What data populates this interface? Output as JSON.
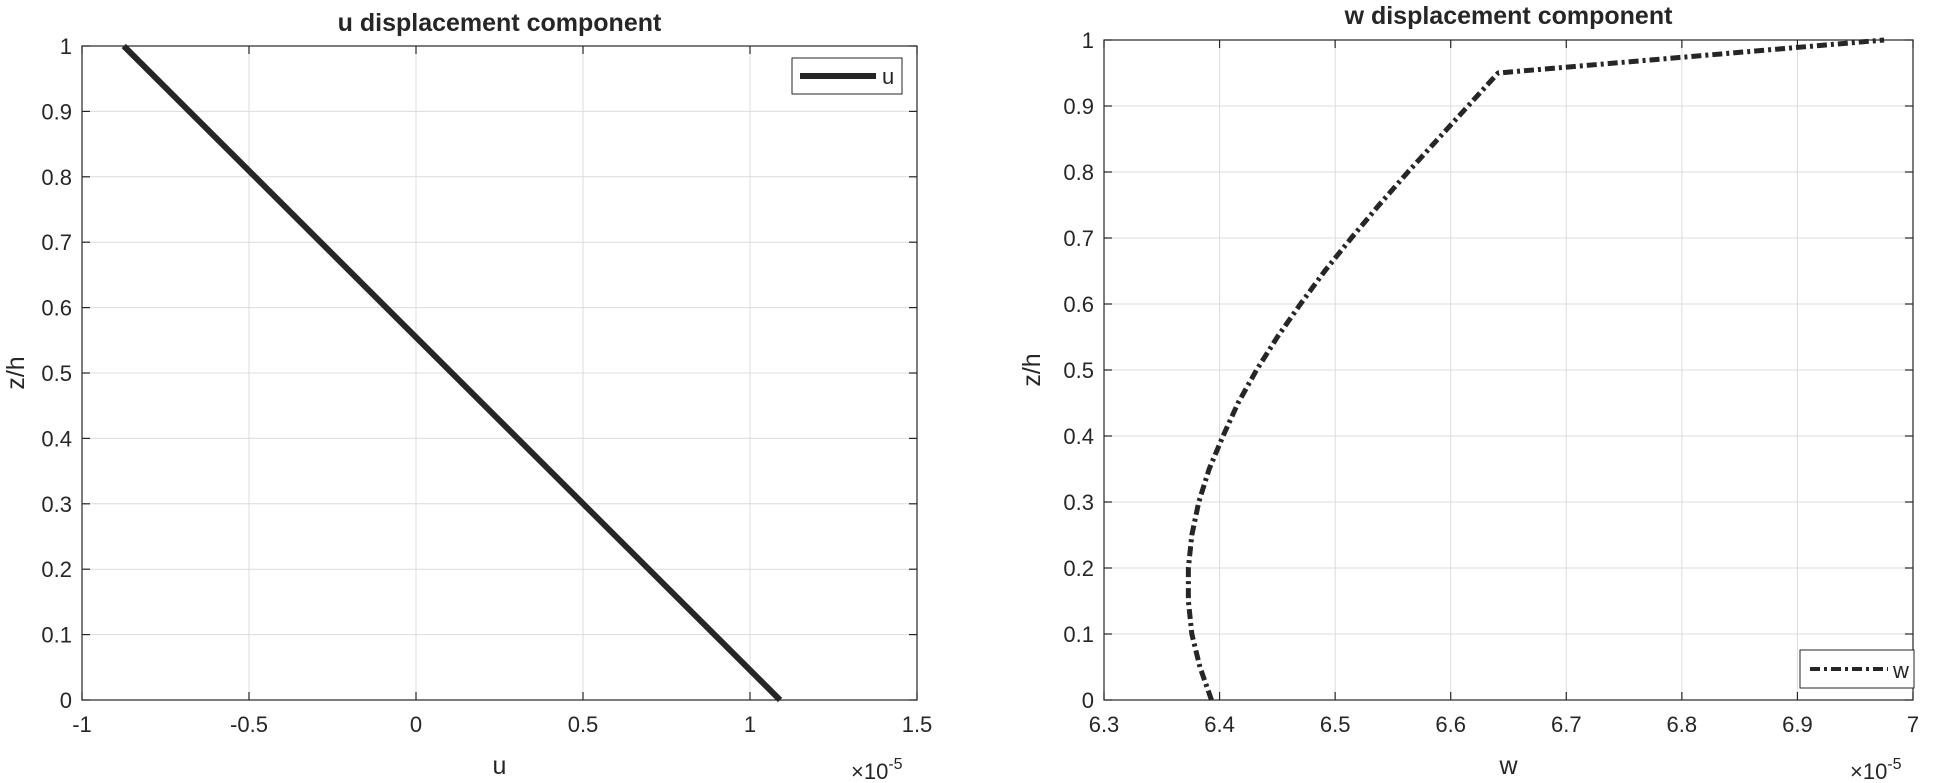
{
  "chart_data": [
    {
      "type": "line",
      "title": "u displacement component",
      "xlabel": "u",
      "ylabel": "z/h",
      "xlim": [
        -1,
        1.5
      ],
      "ylim": [
        0,
        1
      ],
      "xticks": [
        -1,
        -0.5,
        0,
        0.5,
        1,
        1.5
      ],
      "xtick_labels": [
        "-1",
        "-0.5",
        "0",
        "0.5",
        "1",
        "1.5"
      ],
      "yticks": [
        0,
        0.1,
        0.2,
        0.3,
        0.4,
        0.5,
        0.6,
        0.7,
        0.8,
        0.9,
        1
      ],
      "ytick_labels": [
        "0",
        "0.1",
        "0.2",
        "0.3",
        "0.4",
        "0.5",
        "0.6",
        "0.7",
        "0.8",
        "0.9",
        "1"
      ],
      "x_exponent_label": "×10",
      "x_exponent": "-5",
      "grid": true,
      "legend_position": "top-right",
      "series": [
        {
          "name": "u",
          "line_style": "solid",
          "color": "#262626",
          "x": [
            1.09,
            -0.875
          ],
          "y": [
            0,
            1
          ]
        }
      ]
    },
    {
      "type": "line",
      "title": "w displacement component",
      "xlabel": "w",
      "ylabel": "z/h",
      "xlim": [
        6.3,
        7.0
      ],
      "ylim": [
        0,
        1
      ],
      "xticks": [
        6.3,
        6.4,
        6.5,
        6.6,
        6.7,
        6.8,
        6.9,
        7.0
      ],
      "xtick_labels": [
        "6.3",
        "6.4",
        "6.5",
        "6.6",
        "6.7",
        "6.8",
        "6.9",
        "7"
      ],
      "yticks": [
        0,
        0.1,
        0.2,
        0.3,
        0.4,
        0.5,
        0.6,
        0.7,
        0.8,
        0.9,
        1
      ],
      "ytick_labels": [
        "0",
        "0.1",
        "0.2",
        "0.3",
        "0.4",
        "0.5",
        "0.6",
        "0.7",
        "0.8",
        "0.9",
        "1"
      ],
      "x_exponent_label": "×10",
      "x_exponent": "-5",
      "grid": true,
      "legend_position": "bottom-right",
      "series": [
        {
          "name": "w",
          "line_style": "dash-dot",
          "color": "#262626",
          "x": [
            6.393,
            6.383,
            6.376,
            6.373,
            6.373,
            6.376,
            6.382,
            6.391,
            6.403,
            6.416,
            6.432,
            6.45,
            6.47,
            6.491,
            6.514,
            6.538,
            6.563,
            6.589,
            6.615,
            6.641,
            6.667,
            6.694,
            6.72,
            6.746,
            6.772,
            6.797,
            6.822,
            6.846,
            6.869,
            6.891,
            6.912,
            6.932,
            6.95,
            6.975
          ],
          "y": [
            0,
            0.05,
            0.1,
            0.15,
            0.2,
            0.25,
            0.3,
            0.35,
            0.4,
            0.45,
            0.5,
            0.55,
            0.6,
            0.65,
            0.7,
            0.75,
            0.8,
            0.85,
            0.9,
            0.95,
            1.0,
            1.0,
            1.0,
            1.0,
            1.0,
            1.0,
            1.0,
            1.0,
            1.0,
            1.0,
            1.0,
            1.0,
            1.0,
            1.0
          ]
        }
      ]
    }
  ]
}
